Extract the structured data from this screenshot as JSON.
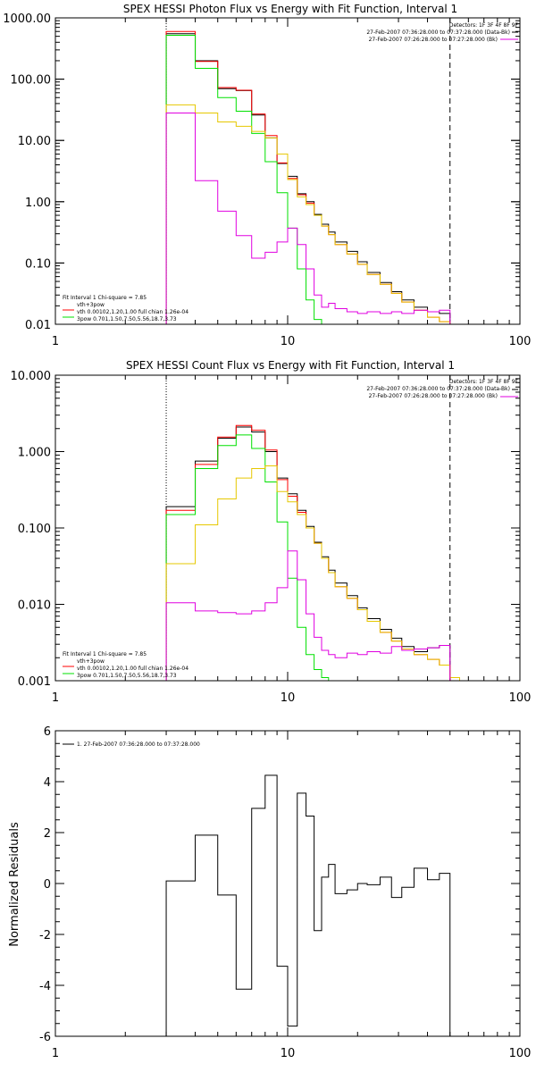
{
  "colors": {
    "total": "#000000",
    "model_sum": "#ff0000",
    "vth": "#00e000",
    "3pow": "#e6c800",
    "background": "#e000e0"
  },
  "chart_data": [
    {
      "type": "line",
      "title": "SPEX HESSI Photon Flux vs Energy with Fit Function, Interval 1",
      "xscale": "log",
      "yscale": "log",
      "xlim": [
        1,
        100
      ],
      "ylim": [
        0.01,
        1000
      ],
      "xticks": [
        "1",
        "10",
        "100"
      ],
      "yticks": [
        "1000.00",
        "100.00",
        "10.00",
        "1.00",
        "0.10",
        "0.01"
      ],
      "vlines": [
        {
          "x": 3,
          "style": "dotted"
        },
        {
          "x": 50,
          "style": "dashed"
        }
      ],
      "header_text": [
        "Detectors: 1F 3F 4F 8F 9F",
        "27-Feb-2007 07:36:28.000 to 07:37:28.000 (Data-Bk)",
        "27-Feb-2007 07:26:28.000 to 07:27:28.000 (Bk)"
      ],
      "header_keys": [
        "total",
        "background"
      ],
      "fit_text": [
        {
          "text": "Fit Interval 1    Chi-square = 7.85",
          "key": null
        },
        {
          "text": "vth+3pow",
          "key": "model_sum"
        },
        {
          "text": "vth 0.00102,1.20,1.00  full chian 1.26e-04",
          "key": "vth"
        },
        {
          "text": "3pow 0.701,1.50,7.50,5.56,18.7,3.73",
          "key": "3pow"
        }
      ],
      "bin_edges": [
        3,
        4,
        5,
        6,
        7,
        8,
        9,
        10,
        11,
        12,
        13,
        14,
        15,
        16,
        18,
        20,
        22,
        25,
        28,
        31,
        35,
        40,
        45,
        50
      ],
      "series": [
        {
          "key": "total",
          "values": [
            550,
            200,
            70,
            65,
            26,
            11,
            4.2,
            2.6,
            1.35,
            1.0,
            0.62,
            0.43,
            0.32,
            0.22,
            0.155,
            0.105,
            0.07,
            0.048,
            0.034,
            0.025,
            0.019,
            0.016,
            0.015
          ]
        },
        {
          "key": "model_sum",
          "values": [
            600,
            195,
            73,
            66,
            27,
            12,
            4.3,
            2.4,
            1.3,
            0.95,
            0.6,
            0.4,
            0.29,
            0.2,
            0.14,
            0.095,
            0.065,
            0.045,
            0.032,
            0.023,
            0.017,
            0.013,
            0.011
          ]
        },
        {
          "key": "vth",
          "values": [
            520,
            150,
            50,
            30,
            13,
            4.5,
            1.4,
            0.37,
            0.08,
            0.025,
            0.012,
            0.01,
            0.009,
            0.008,
            0.007,
            0.006,
            0.006,
            0.006,
            0.006,
            0.006,
            0.006,
            0.006,
            0.006
          ]
        },
        {
          "key": "3pow",
          "values": [
            38,
            28,
            20,
            17,
            14,
            11,
            6,
            2.3,
            1.2,
            0.9,
            0.6,
            0.4,
            0.29,
            0.2,
            0.14,
            0.095,
            0.065,
            0.045,
            0.032,
            0.023,
            0.017,
            0.013,
            0.011
          ]
        },
        {
          "key": "background",
          "values": [
            28,
            2.2,
            0.7,
            0.28,
            0.12,
            0.15,
            0.22,
            0.37,
            0.2,
            0.08,
            0.03,
            0.019,
            0.022,
            0.018,
            0.016,
            0.015,
            0.016,
            0.015,
            0.016,
            0.015,
            0.017,
            0.016,
            0.017
          ]
        }
      ]
    },
    {
      "type": "line",
      "title": "SPEX HESSI Count Flux vs Energy with Fit Function, Interval 1",
      "xscale": "log",
      "yscale": "log",
      "xlim": [
        1,
        100
      ],
      "ylim": [
        0.001,
        10
      ],
      "xticks": [
        "1",
        "10",
        "100"
      ],
      "yticks": [
        "10.000",
        "1.000",
        "0.100",
        "0.010",
        "0.001"
      ],
      "vlines": [
        {
          "x": 3,
          "style": "dotted"
        },
        {
          "x": 50,
          "style": "dashed"
        }
      ],
      "header_text": [
        "Detectors: 1F 3F 4F 8F 9F",
        "27-Feb-2007 07:36:28.000 to 07:37:28.000 (Data-Bk)",
        "27-Feb-2007 07:26:28.000 to 07:27:28.000 (Bk)"
      ],
      "header_keys": [
        "total",
        "background"
      ],
      "fit_text": [
        {
          "text": "Fit Interval 1    Chi-square = 7.85",
          "key": null
        },
        {
          "text": "vth+3pow",
          "key": "model_sum"
        },
        {
          "text": "vth 0.00102,1.20,1.00  full chian 1.26e-04",
          "key": "vth"
        },
        {
          "text": "3pow 0.701,1.50,7.50,5.56,18.7,3.73",
          "key": "3pow"
        }
      ],
      "bin_edges": [
        3,
        4,
        5,
        6,
        7,
        8,
        9,
        10,
        11,
        12,
        13,
        14,
        15,
        16,
        18,
        20,
        22,
        25,
        28,
        31,
        35,
        40,
        45,
        50,
        55
      ],
      "series": [
        {
          "key": "total",
          "values": [
            0.19,
            0.75,
            1.5,
            2.1,
            1.8,
            1.0,
            0.45,
            0.28,
            0.17,
            0.105,
            0.065,
            0.042,
            0.028,
            0.019,
            0.013,
            0.009,
            0.0065,
            0.0047,
            0.0036,
            0.0028,
            0.0024,
            0.0027,
            0.0029,
            null
          ]
        },
        {
          "key": "model_sum",
          "values": [
            0.17,
            0.68,
            1.55,
            2.2,
            1.9,
            1.05,
            0.43,
            0.26,
            0.16,
            0.1,
            0.063,
            0.04,
            0.026,
            0.017,
            0.012,
            0.0085,
            0.006,
            0.0043,
            0.0033,
            0.0026,
            0.0022,
            0.0019,
            0.0016,
            null
          ]
        },
        {
          "key": "vth",
          "values": [
            0.15,
            0.6,
            1.2,
            1.65,
            1.1,
            0.4,
            0.12,
            0.022,
            0.005,
            0.0022,
            0.0014,
            0.0011,
            0.001,
            0.001,
            0.001,
            0.001,
            0.001,
            0.001,
            0.001,
            0.001,
            0.001,
            0.001,
            0.001,
            null
          ]
        },
        {
          "key": "3pow",
          "values": [
            0.034,
            0.11,
            0.24,
            0.45,
            0.6,
            0.65,
            0.3,
            0.22,
            0.15,
            0.1,
            0.063,
            0.04,
            0.026,
            0.017,
            0.012,
            0.0085,
            0.006,
            0.0043,
            0.0033,
            0.0026,
            0.0022,
            0.0019,
            0.0016,
            0.0011
          ]
        },
        {
          "key": "background",
          "values": [
            0.0105,
            0.0082,
            0.0078,
            0.0075,
            0.0082,
            0.0105,
            0.0165,
            0.05,
            0.021,
            0.0075,
            0.0037,
            0.0025,
            0.0022,
            0.002,
            0.0023,
            0.0022,
            0.0024,
            0.0023,
            0.0028,
            0.0025,
            0.0026,
            0.0027,
            0.0029,
            null
          ]
        }
      ]
    },
    {
      "type": "line",
      "title": "",
      "xscale": "log",
      "yscale": "linear",
      "xlim": [
        1,
        100
      ],
      "ylim": [
        -6,
        6
      ],
      "xticks": [
        "1",
        "10",
        "100"
      ],
      "yticks": [
        "6",
        "4",
        "2",
        "0",
        "-2",
        "-4",
        "-6"
      ],
      "ylabel": "Normalized Residuals",
      "legend": [
        {
          "text": "1. 27-Feb-2007 07:36:28.000 to 07:37:28.000",
          "key": "total"
        }
      ],
      "bin_edges": [
        3,
        4,
        5,
        6,
        7,
        8,
        9,
        10,
        11,
        12,
        13,
        14,
        15,
        16,
        18,
        20,
        22,
        25,
        28,
        31,
        35,
        40,
        45,
        50
      ],
      "series": [
        {
          "key": "total",
          "values": [
            0.1,
            1.9,
            -0.45,
            -4.15,
            2.95,
            4.25,
            -3.25,
            -5.6,
            3.55,
            2.65,
            -1.85,
            0.25,
            0.75,
            -0.4,
            -0.25,
            0.0,
            -0.05,
            0.25,
            -0.55,
            -0.15,
            0.6,
            0.15,
            0.4
          ]
        }
      ]
    }
  ]
}
